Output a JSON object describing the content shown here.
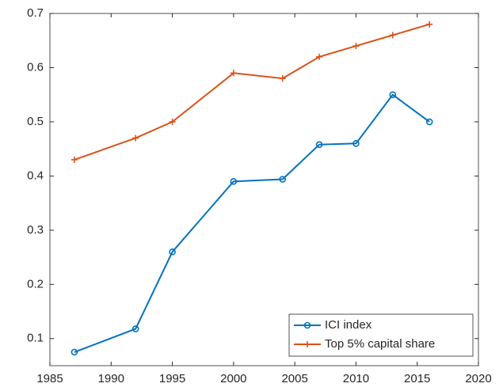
{
  "chart_data": {
    "type": "line",
    "x": [
      1987,
      1992,
      1995,
      2000,
      2004,
      2007,
      2010,
      2013,
      2016
    ],
    "series": [
      {
        "name": "ICI index",
        "color": "#0072bd",
        "marker": "circle",
        "values": [
          0.075,
          0.118,
          0.26,
          0.39,
          0.394,
          0.458,
          0.46,
          0.55,
          0.5
        ]
      },
      {
        "name": "Top 5% capital share",
        "color": "#d95319",
        "marker": "plus",
        "values": [
          0.43,
          0.47,
          0.5,
          0.59,
          0.58,
          0.62,
          0.64,
          0.66,
          0.68
        ]
      }
    ],
    "xlim": [
      1985,
      2020
    ],
    "xticks": [
      1985,
      1990,
      1995,
      2000,
      2005,
      2010,
      2015,
      2020
    ],
    "ylim": [
      0.05,
      0.7
    ],
    "yticks": [
      0.1,
      0.2,
      0.3,
      0.4,
      0.5,
      0.6,
      0.7
    ],
    "grid": false,
    "legend": "lower right"
  }
}
